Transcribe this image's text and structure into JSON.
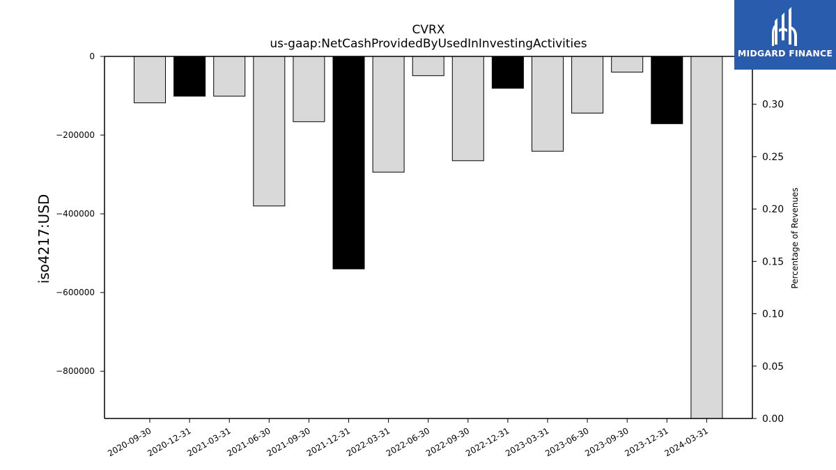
{
  "brand": {
    "name": "MIDGARD FINANCE",
    "color": "#2a5cad"
  },
  "chart_data": {
    "type": "bar",
    "title": "CVRX",
    "subtitle": "us-gaap:NetCashProvidedByUsedInInvestingActivities",
    "ylabel": "iso4217:USD",
    "y2label": "Percentage of Revenues",
    "categories": [
      "2020-09-30",
      "2020-12-31",
      "2021-03-31",
      "2021-06-30",
      "2021-09-30",
      "2021-12-31",
      "2022-03-31",
      "2022-06-30",
      "2022-09-30",
      "2022-12-31",
      "2023-03-31",
      "2023-06-30",
      "2023-09-30",
      "2023-12-31",
      "2024-03-31"
    ],
    "values": [
      -118000,
      -101000,
      -101000,
      -380000,
      -166000,
      -540000,
      -294000,
      -49000,
      -265000,
      -81000,
      -241000,
      -144000,
      -40000,
      -171000,
      -922000
    ],
    "bar_colors": [
      "#d9d9d9",
      "#000000",
      "#d9d9d9",
      "#d9d9d9",
      "#d9d9d9",
      "#000000",
      "#d9d9d9",
      "#d9d9d9",
      "#d9d9d9",
      "#000000",
      "#d9d9d9",
      "#d9d9d9",
      "#d9d9d9",
      "#000000",
      "#d9d9d9"
    ],
    "ylim": [
      -920000,
      0
    ],
    "yticks": [
      0,
      -200000,
      -400000,
      -600000,
      -800000
    ],
    "ytick_labels": [
      "0",
      "−200000",
      "−400000",
      "−600000",
      "−800000"
    ],
    "y2lim": [
      0,
      0.3457
    ],
    "y2ticks": [
      0.0,
      0.05,
      0.1,
      0.15,
      0.2,
      0.25,
      0.3
    ],
    "y2tick_labels": [
      "0.00",
      "0.05",
      "0.10",
      "0.15",
      "0.20",
      "0.25",
      "0.30"
    ],
    "grid": false,
    "legend": "none"
  }
}
